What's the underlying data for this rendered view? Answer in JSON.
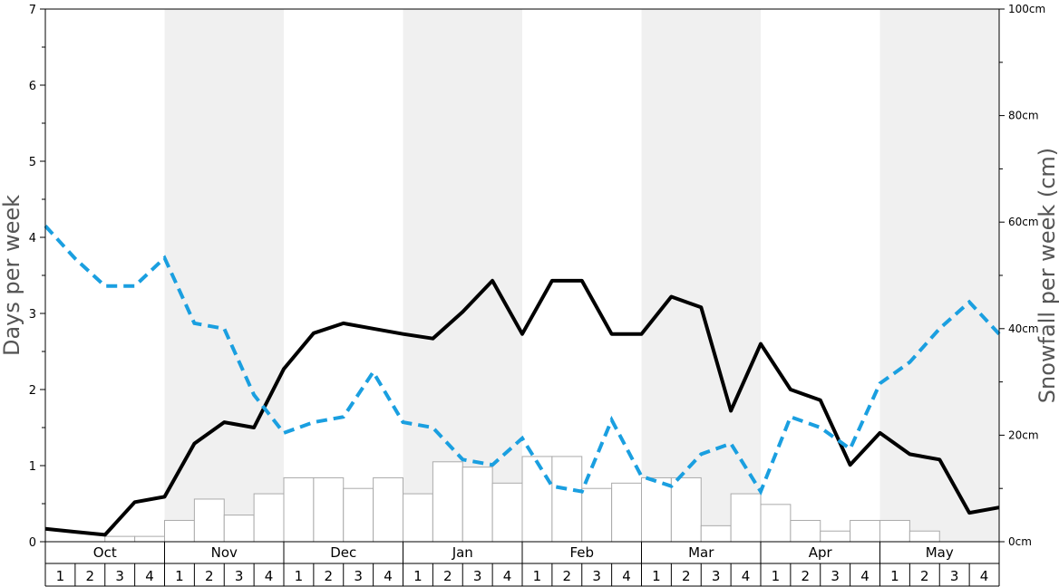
{
  "chart_data": {
    "type": "line",
    "y_left_label": "Days per week",
    "y_right_label": "Snowfall per week (cm)",
    "y_left_range": [
      0,
      7
    ],
    "y_left_ticks": [
      "0",
      "1",
      "2",
      "3",
      "4",
      "5",
      "6",
      "7"
    ],
    "y_right_range": [
      0,
      100
    ],
    "y_right_ticks": [
      "0cm",
      "20cm",
      "40cm",
      "60cm",
      "80cm",
      "100cm"
    ],
    "months": [
      "Oct",
      "Nov",
      "Dec",
      "Jan",
      "Feb",
      "Mar",
      "Apr",
      "May"
    ],
    "week_labels": [
      "1",
      "2",
      "3",
      "4"
    ],
    "shaded_months": [
      "Nov",
      "Jan",
      "Mar",
      "May"
    ],
    "grid": false,
    "series": [
      {
        "type": "bar",
        "axis": "right",
        "color": "#ffffff",
        "stroke": "#aaaaaa",
        "values": [
          0,
          0,
          1,
          1,
          4,
          8,
          5,
          9,
          12,
          12,
          10,
          12,
          9,
          15,
          14,
          11,
          16,
          16,
          10,
          11,
          12,
          12,
          3,
          9,
          7,
          4,
          2,
          4,
          4,
          2,
          0,
          0
        ]
      },
      {
        "type": "line",
        "axis": "left",
        "color": "#000000",
        "dashed": false,
        "values": [
          0.17,
          0.13,
          0.09,
          0.52,
          0.59,
          1.29,
          1.57,
          1.5,
          2.27,
          2.74,
          2.87,
          2.8,
          2.73,
          2.67,
          3.02,
          3.43,
          2.73,
          3.43,
          3.43,
          2.73,
          2.73,
          3.22,
          3.08,
          1.72,
          2.6,
          2.0,
          1.86,
          1.01,
          1.43,
          1.15,
          1.08,
          0.38,
          0.45
        ]
      },
      {
        "type": "line",
        "axis": "left",
        "color": "#1a9fe0",
        "dashed": true,
        "values": [
          4.15,
          3.72,
          3.36,
          3.36,
          3.73,
          2.87,
          2.8,
          1.93,
          1.43,
          1.57,
          1.64,
          2.23,
          1.57,
          1.5,
          1.08,
          1.01,
          1.36,
          0.73,
          0.66,
          1.6,
          0.86,
          0.73,
          1.15,
          1.29,
          0.66,
          1.64,
          1.5,
          1.22,
          2.08,
          2.36,
          2.8,
          3.15,
          2.73
        ]
      }
    ]
  }
}
